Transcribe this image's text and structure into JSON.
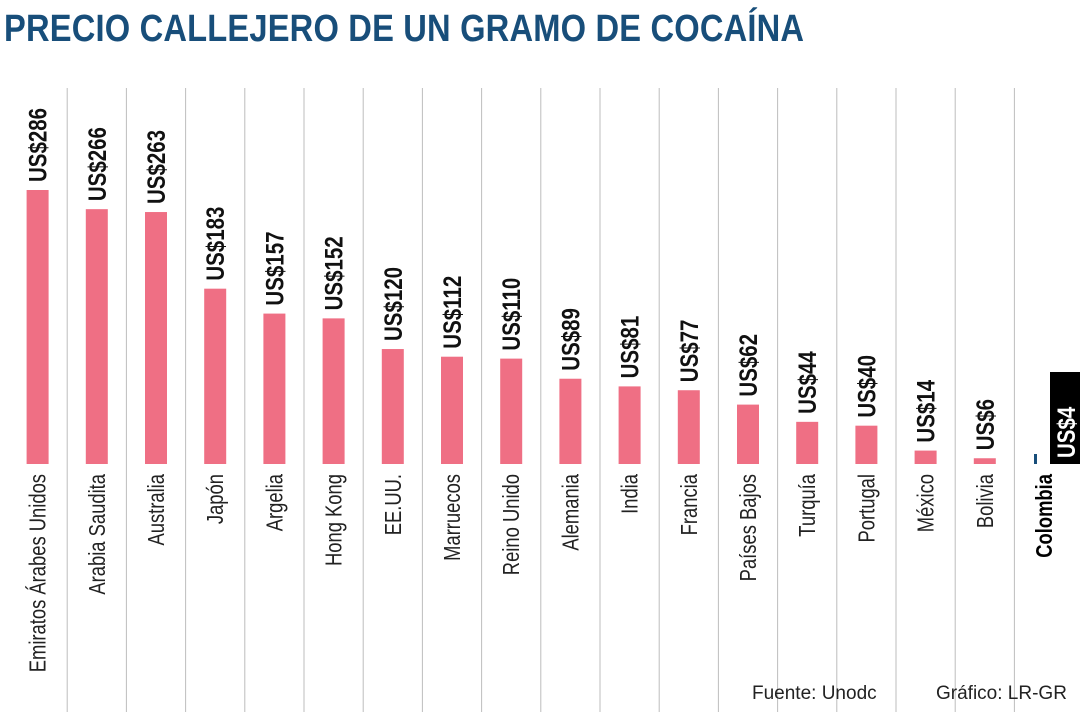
{
  "title": "PRECIO CALLEJERO DE UN GRAMO DE COCAÍNA",
  "source": "Fuente: Unodc",
  "credit": "Gráfico: LR-GR",
  "colors": {
    "bar": "#ef6f84",
    "title": "#184e7a",
    "grid": "#bdbdbd",
    "highlight_box": "#000000",
    "highlight_bar": "#184e7a"
  },
  "chart_data": {
    "type": "bar",
    "title": "PRECIO CALLEJERO DE UN GRAMO DE COCAÍNA",
    "xlabel": "",
    "ylabel": "",
    "ylim": [
      0,
      300
    ],
    "categories": [
      "Emiratos Árabes Unidos",
      "Arabia Saudita",
      "Australia",
      "Japón",
      "Argelia",
      "Hong Kong",
      "EE.UU.",
      "Marruecos",
      "Reino Unido",
      "Alemania",
      "India",
      "Francia",
      "Países Bajos",
      "Turquía",
      "Portugal",
      "México",
      "Bolivia",
      "Colombia"
    ],
    "values": [
      286,
      266,
      263,
      183,
      157,
      152,
      120,
      112,
      110,
      89,
      81,
      77,
      62,
      44,
      40,
      14,
      6,
      4
    ],
    "value_labels": [
      "US$286",
      "US$266",
      "US$263",
      "US$183",
      "US$157",
      "US$152",
      "US$120",
      "US$112",
      "US$110",
      "US$89",
      "US$81",
      "US$77",
      "US$62",
      "US$44",
      "US$40",
      "US$14",
      "US$6",
      "US$4"
    ],
    "highlight": "Colombia"
  }
}
